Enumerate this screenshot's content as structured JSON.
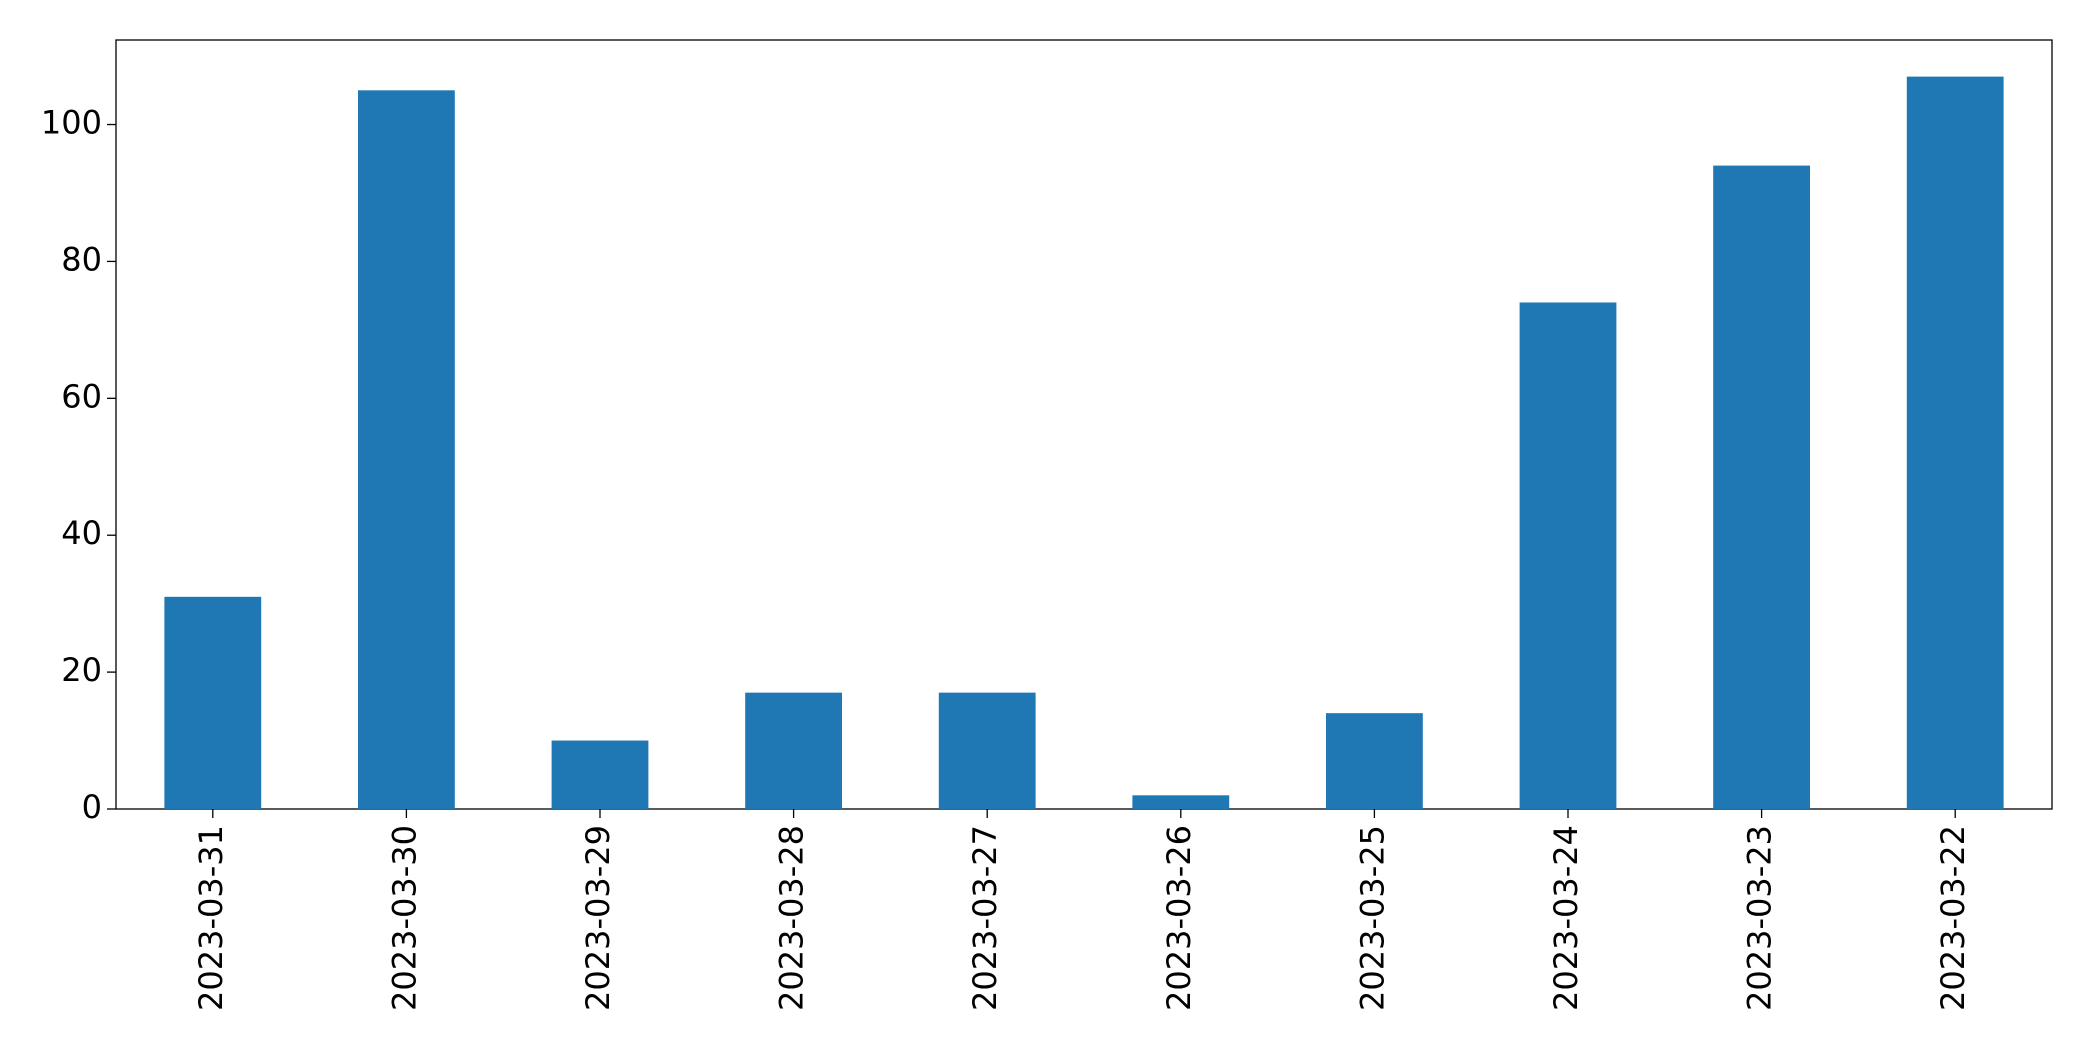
{
  "chart_data": {
    "type": "bar",
    "categories": [
      "2023-03-31",
      "2023-03-30",
      "2023-03-29",
      "2023-03-28",
      "2023-03-27",
      "2023-03-26",
      "2023-03-25",
      "2023-03-24",
      "2023-03-23",
      "2023-03-22"
    ],
    "values": [
      31,
      105,
      10,
      17,
      17,
      2,
      14,
      74,
      94,
      107
    ],
    "color": "#1f77b4",
    "ylim": [
      0,
      112.35
    ],
    "yticks": [
      0,
      20,
      40,
      60,
      80,
      100
    ],
    "grid": false
  }
}
